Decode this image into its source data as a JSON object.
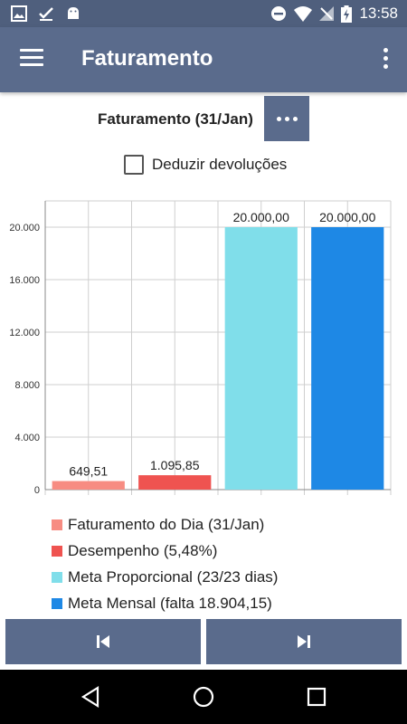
{
  "status_bar": {
    "time": "13:58",
    "icons": [
      "image-icon",
      "check-download-icon",
      "android-icon",
      "dnd-icon",
      "wifi-icon",
      "no-sim-icon",
      "battery-charging-icon"
    ]
  },
  "app_bar": {
    "title": "Faturamento",
    "menu_icon": "hamburger-menu-icon",
    "more_icon": "more-vert-icon"
  },
  "header": {
    "title": "Faturamento (31/Jan)",
    "options_icon": "more-horiz-icon"
  },
  "deduct_returns": {
    "label": "Deduzir devoluções",
    "checked": false
  },
  "chart_data": {
    "type": "bar",
    "categories": [
      "Faturamento do Dia (31/Jan)",
      "Desempenho (5,48%)",
      "Meta Proporcional (23/23 dias)",
      "Meta Mensal (falta 18.904,15)"
    ],
    "values": [
      649.51,
      1095.85,
      20000,
      20000
    ],
    "value_labels": [
      "649,51",
      "1.095,85",
      "20.000,00",
      "20.000,00"
    ],
    "colors": [
      "#f78c82",
      "#ef5350",
      "#80deea",
      "#1e88e5"
    ],
    "ylim": [
      0,
      22000
    ],
    "yticks": [
      0,
      4000,
      8000,
      12000,
      16000,
      20000
    ],
    "ytick_labels": [
      "0",
      "4.000",
      "8.000",
      "12.000",
      "16.000",
      "20.000"
    ],
    "grid": true,
    "legend_position": "bottom"
  },
  "nav": {
    "prev_icon": "skip-previous-icon",
    "next_icon": "skip-next-icon"
  },
  "system_nav": {
    "back_icon": "back-triangle-icon",
    "home_icon": "home-circle-icon",
    "recents_icon": "recents-square-icon"
  }
}
